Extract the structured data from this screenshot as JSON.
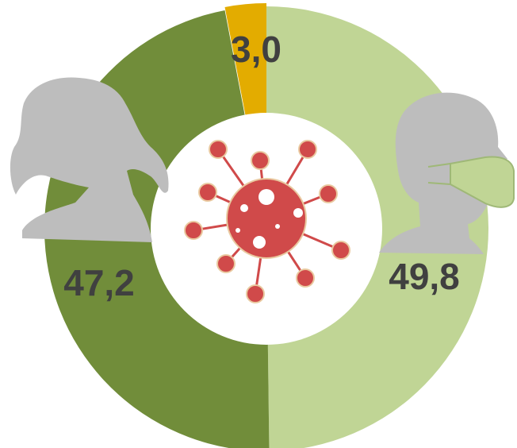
{
  "chart_data": {
    "type": "pie",
    "values": [
      49.8,
      47.2,
      3.0
    ],
    "value_labels": [
      "49,8",
      "47,2",
      "3,0"
    ],
    "colors": [
      "#c0d595",
      "#718d3a",
      "#e3ac00"
    ]
  }
}
